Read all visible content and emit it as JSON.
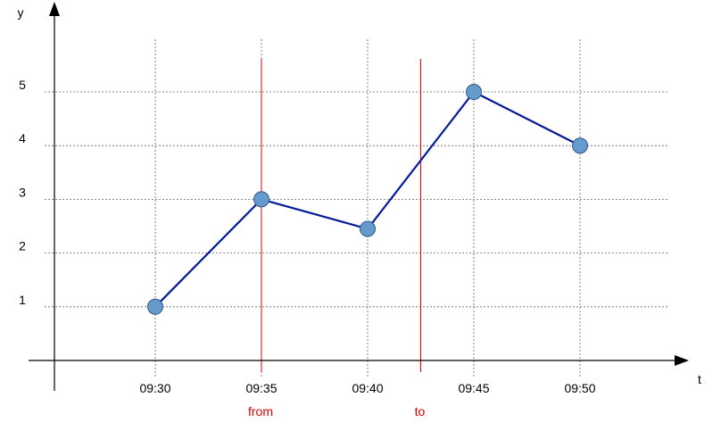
{
  "chart_data": {
    "type": "line",
    "xlabel": "t",
    "ylabel": "y",
    "x": [
      "09:30",
      "09:35",
      "09:40",
      "09:45",
      "09:50"
    ],
    "series": [
      {
        "values": [
          1,
          3,
          2.45,
          5,
          4
        ],
        "color": "#001a99",
        "marker_color": "#6699cc"
      }
    ],
    "y_ticks": [
      1,
      2,
      3,
      4,
      5
    ],
    "ylim": [
      0,
      5
    ],
    "grid": true,
    "markers": [
      {
        "label": "from",
        "x": "09:35",
        "color": "#e00000"
      },
      {
        "label": "to",
        "x": "09:42:30",
        "color": "#e00000"
      }
    ]
  }
}
